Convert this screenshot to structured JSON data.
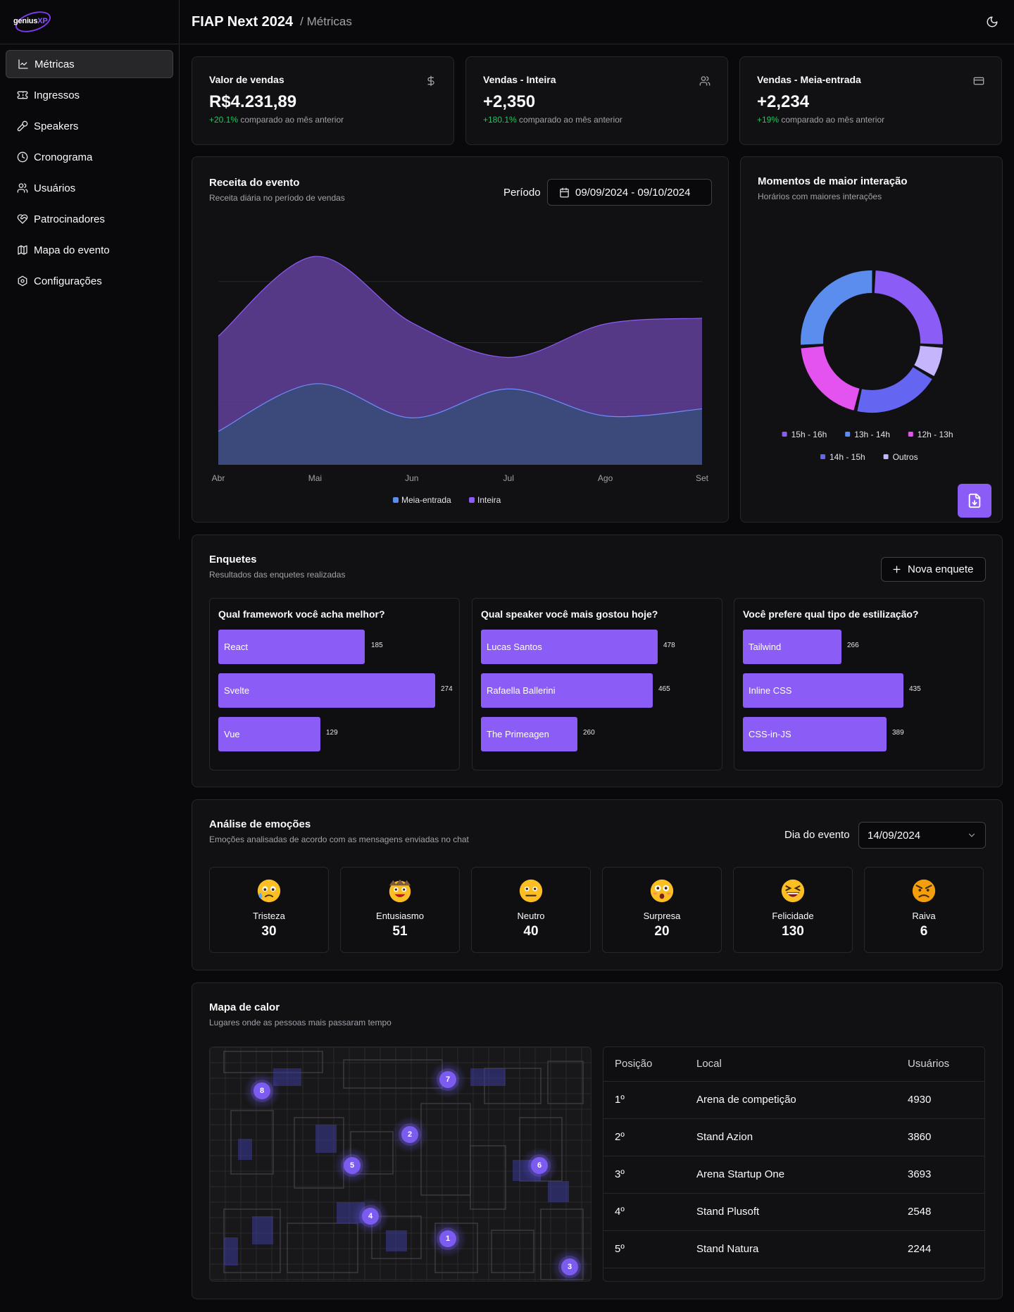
{
  "app": {
    "logo_text": "genius",
    "logo_accent": "XP",
    "title": "FIAP Next 2024",
    "crumb": "/ Métricas"
  },
  "sidebar": {
    "items": [
      {
        "label": "Métricas",
        "icon": "chart-line-icon"
      },
      {
        "label": "Ingressos",
        "icon": "ticket-icon"
      },
      {
        "label": "Speakers",
        "icon": "mic-icon"
      },
      {
        "label": "Cronograma",
        "icon": "clock-icon"
      },
      {
        "label": "Usuários",
        "icon": "users-icon"
      },
      {
        "label": "Patrocinadores",
        "icon": "heart-handshake-icon"
      },
      {
        "label": "Mapa do evento",
        "icon": "map-icon"
      },
      {
        "label": "Configurações",
        "icon": "settings-icon"
      }
    ]
  },
  "kpis": [
    {
      "label": "Valor de vendas",
      "value": "R$4.231,89",
      "delta": "+20.1%",
      "suffix": " comparado ao mês anterior",
      "icon": "dollar-icon"
    },
    {
      "label": "Vendas - Inteira",
      "value": "+2,350",
      "delta": "+180.1%",
      "suffix": " comparado ao mês anterior",
      "icon": "users-icon"
    },
    {
      "label": "Vendas - Meia-entrada",
      "value": "+2,234",
      "delta": "+19%",
      "suffix": " comparado ao mês anterior",
      "icon": "credit-card-icon"
    }
  ],
  "revenue": {
    "title": "Receita do evento",
    "subtitle": "Receita diária no período de vendas",
    "period_label": "Período",
    "period_value": "09/09/2024 - 09/10/2024"
  },
  "interaction": {
    "title": "Momentos de maior interação",
    "subtitle": "Horários com maiores interações"
  },
  "polls": {
    "title": "Enquetes",
    "subtitle": "Resultados das enquetes realizadas",
    "new_button": "Nova enquete",
    "items": [
      {
        "question": "Qual framework você acha melhor?",
        "options": [
          {
            "label": "React",
            "value": 185
          },
          {
            "label": "Svelte",
            "value": 274
          },
          {
            "label": "Vue",
            "value": 129
          }
        ]
      },
      {
        "question": "Qual speaker você mais gostou hoje?",
        "options": [
          {
            "label": "Lucas Santos",
            "value": 478
          },
          {
            "label": "Rafaella Ballerini",
            "value": 465
          },
          {
            "label": "The Primeagen",
            "value": 260
          }
        ]
      },
      {
        "question": "Você prefere qual tipo de estilização?",
        "options": [
          {
            "label": "Tailwind",
            "value": 266
          },
          {
            "label": "Inline CSS",
            "value": 435
          },
          {
            "label": "CSS-in-JS",
            "value": 389
          }
        ]
      }
    ]
  },
  "emotions": {
    "title": "Análise de emoções",
    "subtitle": "Emoções analisadas de acordo com as mensagens enviadas no chat",
    "day_label": "Dia do evento",
    "day_value": "14/09/2024",
    "items": [
      {
        "name": "Tristeza",
        "count": "30",
        "icon": "sad-face-icon"
      },
      {
        "name": "Entusiasmo",
        "count": "51",
        "icon": "excited-face-icon"
      },
      {
        "name": "Neutro",
        "count": "40",
        "icon": "neutral-face-icon"
      },
      {
        "name": "Surpresa",
        "count": "20",
        "icon": "surprised-face-icon"
      },
      {
        "name": "Felicidade",
        "count": "130",
        "icon": "happy-face-icon"
      },
      {
        "name": "Raiva",
        "count": "6",
        "icon": "angry-face-icon"
      }
    ]
  },
  "heatmap": {
    "title": "Mapa de calor",
    "subtitle": "Lugares onde as pessoas mais passaram tempo",
    "markers": [
      "1",
      "2",
      "3",
      "4",
      "5",
      "6",
      "7",
      "8"
    ],
    "table": {
      "headers": [
        "Posição",
        "Local",
        "Usuários"
      ],
      "rows": [
        [
          "1º",
          "Arena de competição",
          "4930"
        ],
        [
          "2º",
          "Stand Azion",
          "3860"
        ],
        [
          "3º",
          "Arena Startup One",
          "3693"
        ],
        [
          "4º",
          "Stand Plusoft",
          "2548"
        ],
        [
          "5º",
          "Stand Natura",
          "2244"
        ]
      ]
    }
  },
  "chart_data": [
    {
      "type": "area",
      "categories": [
        "Abr",
        "Mai",
        "Jun",
        "Jul",
        "Ago",
        "Set"
      ],
      "series": [
        {
          "name": "Meia-entrada",
          "values": [
            52,
            126,
            73,
            118,
            76,
            87
          ],
          "color": "#3b4a7a"
        },
        {
          "name": "Inteira",
          "values": [
            200,
            324,
            221,
            167,
            219,
            228
          ],
          "color": "#5b3c8c"
        }
      ],
      "ylim": [
        0,
        380
      ],
      "legend": "bottom",
      "grid": true
    },
    {
      "type": "pie",
      "labels": [
        "15h - 16h",
        "13h - 14h",
        "12h - 13h",
        "14h - 15h",
        "Outros"
      ],
      "values": [
        24,
        25,
        19,
        19,
        7
      ],
      "colors": [
        "#8b5cf6",
        "#5b8def",
        "#e452ef",
        "#6466f1",
        "#c4b5fd"
      ],
      "legend": "bottom"
    }
  ]
}
